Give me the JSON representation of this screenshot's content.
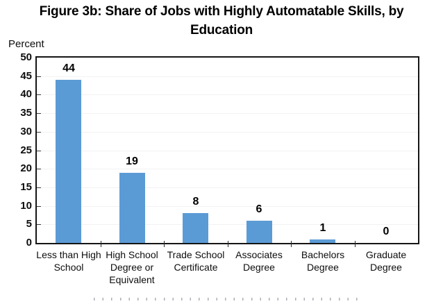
{
  "header": {
    "title_line1": "Figure 3b: Share of Jobs with Highly Automatable Skills, by",
    "title_line2": "Education"
  },
  "chart_data": {
    "type": "bar",
    "title": "Figure 3b: Share of Jobs with Highly Automatable Skills, by Education",
    "ylabel": "Percent",
    "xlabel": "",
    "categories": [
      "Less than High School",
      "High School Degree or Equivalent",
      "Trade School Certificate",
      "Associates Degree",
      "Bachelors Degree",
      "Graduate Degree"
    ],
    "values": [
      44,
      19,
      8,
      6,
      1,
      0
    ],
    "ylim": [
      0,
      50
    ],
    "yticks": [
      0,
      5,
      10,
      15,
      20,
      25,
      30,
      35,
      40,
      45,
      50
    ],
    "grid": true,
    "legend_position": "none",
    "colors": {
      "bar": "#5B9BD5",
      "gridline": "#F2F2F2",
      "axis_border": "#141414",
      "text": "#000000"
    }
  }
}
